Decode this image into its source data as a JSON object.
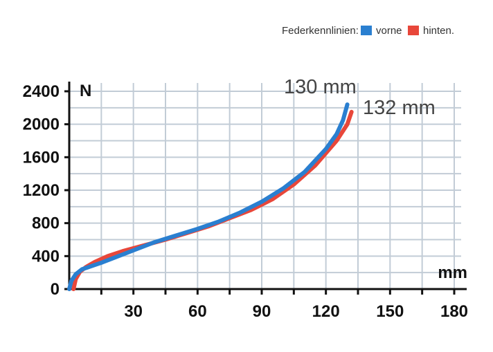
{
  "chart_data": {
    "type": "line",
    "legend_title": "Federkennlinien:",
    "xlabel": "mm",
    "ylabel": "N",
    "xlim": [
      0,
      180
    ],
    "ylim": [
      0,
      2400
    ],
    "x_ticks": [
      30,
      60,
      90,
      120,
      150,
      180
    ],
    "y_ticks": [
      0,
      400,
      800,
      1200,
      1600,
      2000,
      2400
    ],
    "grid": true,
    "legend_position": "top-right",
    "series": [
      {
        "name": "vorne",
        "color": "#2a7fd0",
        "end_label": "130 mm",
        "points": [
          [
            0,
            0
          ],
          [
            1,
            100
          ],
          [
            3,
            180
          ],
          [
            6,
            240
          ],
          [
            10,
            275
          ],
          [
            15,
            320
          ],
          [
            20,
            370
          ],
          [
            30,
            470
          ],
          [
            40,
            570
          ],
          [
            50,
            650
          ],
          [
            60,
            730
          ],
          [
            70,
            820
          ],
          [
            80,
            930
          ],
          [
            90,
            1060
          ],
          [
            100,
            1220
          ],
          [
            110,
            1420
          ],
          [
            120,
            1700
          ],
          [
            125,
            1880
          ],
          [
            128,
            2050
          ],
          [
            130,
            2240
          ]
        ]
      },
      {
        "name": "hinten.",
        "color": "#e8473a",
        "end_label": "132 mm",
        "points": [
          [
            2,
            0
          ],
          [
            3,
            120
          ],
          [
            5,
            210
          ],
          [
            8,
            270
          ],
          [
            12,
            330
          ],
          [
            18,
            400
          ],
          [
            25,
            460
          ],
          [
            35,
            530
          ],
          [
            45,
            600
          ],
          [
            55,
            680
          ],
          [
            65,
            760
          ],
          [
            75,
            860
          ],
          [
            85,
            960
          ],
          [
            95,
            1090
          ],
          [
            105,
            1270
          ],
          [
            115,
            1500
          ],
          [
            125,
            1800
          ],
          [
            130,
            2000
          ],
          [
            132,
            2150
          ]
        ]
      }
    ]
  }
}
